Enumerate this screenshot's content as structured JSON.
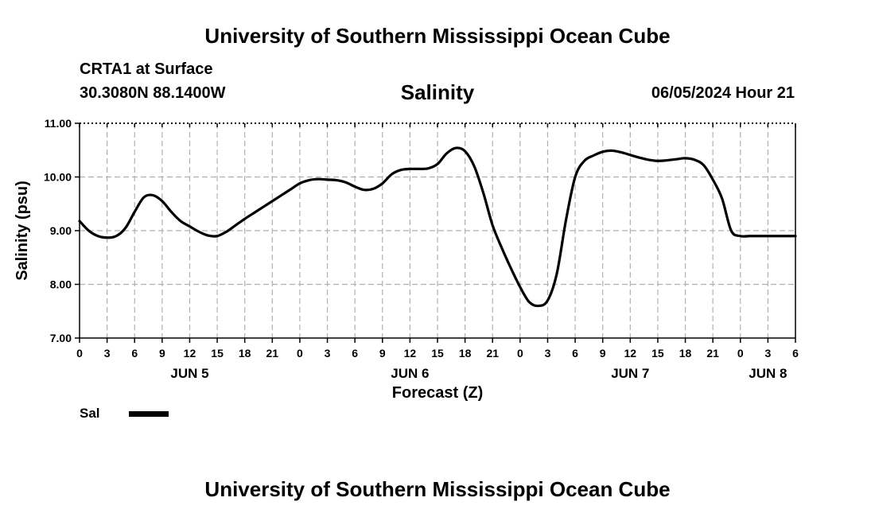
{
  "header": {
    "org_title": "University of Southern Mississippi Ocean Cube",
    "station": "CRTA1 at Surface",
    "coords": "30.3080N  88.1400W",
    "datetime": "06/05/2024 Hour 21",
    "footer_title": "University of Southern Mississippi Ocean Cube"
  },
  "chart_data": {
    "type": "line",
    "title": "Salinity",
    "xlabel": "Forecast (Z)",
    "ylabel": "Salinity (psu)",
    "ylim": [
      7.0,
      11.0
    ],
    "yticks": [
      "7.00",
      "8.00",
      "9.00",
      "10.00",
      "11.00"
    ],
    "xlim_hours": [
      0,
      78
    ],
    "xticks": [
      "0",
      "3",
      "6",
      "9",
      "12",
      "15",
      "18",
      "21",
      "0",
      "3",
      "6",
      "9",
      "12",
      "15",
      "18",
      "21",
      "0",
      "3",
      "6",
      "9",
      "12",
      "15",
      "18",
      "21",
      "0",
      "3",
      "6"
    ],
    "day_labels": [
      {
        "label": "JUN 5",
        "hour": 12
      },
      {
        "label": "JUN 6",
        "hour": 36
      },
      {
        "label": "JUN 7",
        "hour": 60
      },
      {
        "label": "JUN 8",
        "hour": 75
      }
    ],
    "grid": true,
    "series": [
      {
        "name": "Sal",
        "color": "#000000",
        "x": [
          0,
          1,
          2,
          3,
          4,
          5,
          6,
          7,
          8,
          9,
          10,
          11,
          12,
          13,
          14,
          15,
          16,
          17,
          18,
          19,
          20,
          21,
          22,
          23,
          24,
          25,
          26,
          27,
          28,
          29,
          30,
          31,
          32,
          33,
          34,
          35,
          36,
          37,
          38,
          39,
          40,
          41,
          42,
          43,
          44,
          45,
          46,
          47,
          48,
          49,
          50,
          51,
          52,
          53,
          54,
          55,
          56,
          57,
          58,
          59,
          60,
          61,
          62,
          63,
          64,
          65,
          66,
          67,
          68,
          69,
          70,
          71,
          72,
          73,
          74,
          75,
          76,
          77,
          78
        ],
        "values": [
          9.18,
          9.0,
          8.9,
          8.87,
          8.9,
          9.05,
          9.35,
          9.62,
          9.66,
          9.55,
          9.35,
          9.18,
          9.08,
          8.98,
          8.91,
          8.9,
          8.98,
          9.1,
          9.22,
          9.33,
          9.44,
          9.55,
          9.66,
          9.77,
          9.88,
          9.94,
          9.96,
          9.95,
          9.94,
          9.9,
          9.82,
          9.76,
          9.78,
          9.88,
          10.05,
          10.13,
          10.15,
          10.15,
          10.16,
          10.24,
          10.44,
          10.54,
          10.48,
          10.2,
          9.7,
          9.1,
          8.68,
          8.3,
          7.95,
          7.67,
          7.6,
          7.7,
          8.2,
          9.2,
          10.0,
          10.3,
          10.4,
          10.47,
          10.49,
          10.46,
          10.41,
          10.36,
          10.32,
          10.3,
          10.31,
          10.33,
          10.35,
          10.32,
          10.22,
          9.95,
          9.6,
          9.0,
          8.9,
          8.9,
          8.9,
          8.9,
          8.9,
          8.9,
          8.9
        ]
      }
    ]
  },
  "legend": {
    "label": "Sal"
  }
}
